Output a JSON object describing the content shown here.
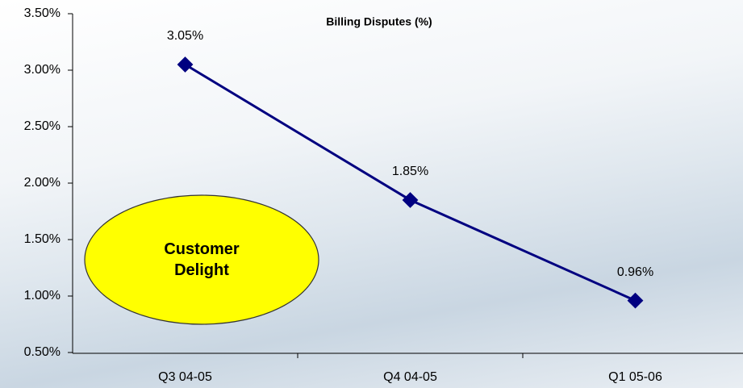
{
  "chart_data": {
    "type": "line",
    "title": "Billing Disputes (%)",
    "categories": [
      "Q3 04-05",
      "Q4 04-05",
      "Q1 05-06"
    ],
    "series": [
      {
        "color": "#000080",
        "values": [
          3.05,
          1.85,
          0.96
        ],
        "value_labels": [
          "3.05%",
          "1.85%",
          "0.96%"
        ]
      }
    ],
    "ylim": [
      0.5,
      3.5
    ],
    "yticks": [
      {
        "value": 0.5,
        "label": "0.50%"
      },
      {
        "value": 1.0,
        "label": "1.00%"
      },
      {
        "value": 1.5,
        "label": "1.50%"
      },
      {
        "value": 2.0,
        "label": "2.00%"
      },
      {
        "value": 2.5,
        "label": "2.50%"
      },
      {
        "value": 3.0,
        "label": "3.00%"
      },
      {
        "value": 3.5,
        "label": "3.50%"
      }
    ],
    "annotation": "Customer Delight"
  }
}
